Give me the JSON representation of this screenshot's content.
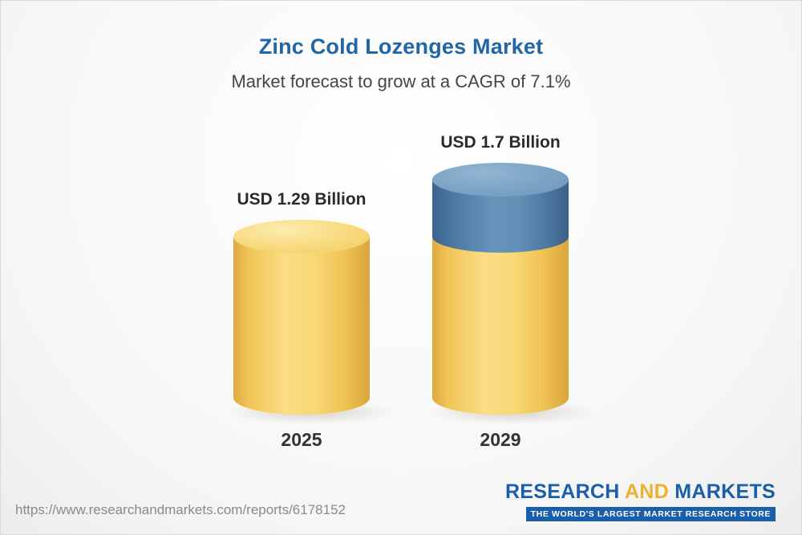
{
  "header": {
    "title": "Zinc Cold Lozenges Market",
    "subtitle": "Market forecast to grow at a CAGR of 7.1%"
  },
  "chart_data": {
    "type": "bar",
    "title": "Zinc Cold Lozenges Market",
    "subtitle": "Market forecast to grow at a CAGR of 7.1%",
    "cagr_percent": 7.1,
    "unit": "USD Billion",
    "categories": [
      "2025",
      "2029"
    ],
    "values": [
      1.29,
      1.7
    ],
    "value_labels": [
      "USD 1.29 Billion",
      "USD 1.7 Billion"
    ],
    "legend_position": "none",
    "grid": false,
    "colors": {
      "base_segment": "#F6CE63",
      "growth_segment": "#5E8BB3",
      "title": "#2166A5"
    }
  },
  "footer": {
    "url": "https://www.researchandmarkets.com/reports/6178152",
    "logo": {
      "research": "RESEARCH ",
      "and": "AND",
      "markets": " MARKETS",
      "tagline": "THE WORLD'S LARGEST MARKET RESEARCH STORE",
      "brand_blue": "#1B5EA9",
      "brand_yellow": "#F0AF2D"
    }
  }
}
